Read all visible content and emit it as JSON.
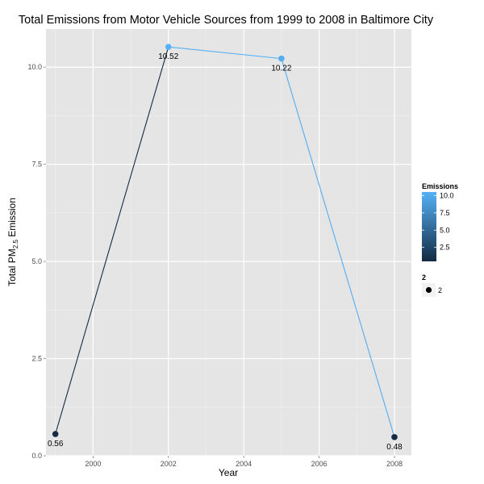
{
  "chart_data": {
    "type": "line",
    "title": "Total Emissions from Motor Vehicle Sources from 1999 to 2008 in Baltimore City",
    "xlabel": "Year",
    "ylabel": {
      "prefix": "Total PM",
      "subscript": "2.5",
      "suffix": " Emission"
    },
    "x": [
      1999,
      2002,
      2005,
      2008
    ],
    "values": [
      0.56,
      10.52,
      10.22,
      0.48
    ],
    "data_labels": [
      "0.56",
      "10.52",
      "10.22",
      "0.48"
    ],
    "xlim": [
      1998.75,
      2008.45
    ],
    "ylim": [
      0,
      10.98
    ],
    "x_ticks": [
      2000,
      2002,
      2004,
      2006,
      2008
    ],
    "x_tick_labels": [
      "2000",
      "2002",
      "2004",
      "2006",
      "2008"
    ],
    "y_ticks": [
      0,
      2.5,
      5,
      7.5,
      10
    ],
    "y_tick_labels": [
      "0.0",
      "2.5",
      "5.0",
      "7.5",
      "10.0"
    ],
    "grid": true,
    "panel_background": "#e5e5e5",
    "color_scale": {
      "low": "#132b43",
      "high": "#56b1f7",
      "domain": [
        0.48,
        10.52
      ]
    },
    "legend": {
      "placement": "right",
      "color_title": "Emissions",
      "color_ticks": [
        2.5,
        5,
        7.5,
        10
      ],
      "color_tick_labels": [
        "2.5",
        "5.0",
        "7.5",
        "10.0"
      ],
      "size_title": "2",
      "size_label": "2"
    }
  }
}
